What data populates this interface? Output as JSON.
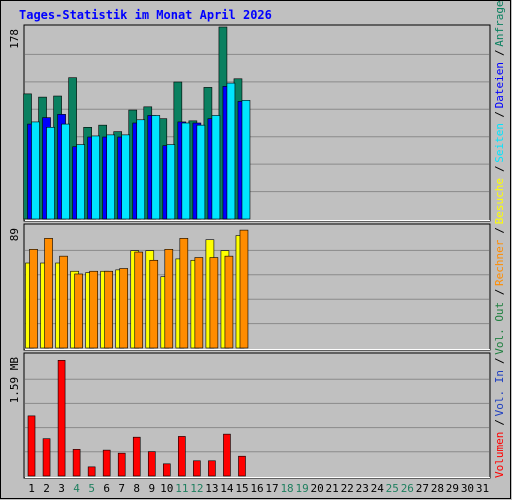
{
  "title": "Tages-Statistik im Monat April 2026",
  "colors": {
    "background": "#c0c0c0",
    "panel": "#c0c0c0",
    "grid": "#8a8a8a",
    "title": "#0000ff",
    "anfragen": "#0a8060",
    "dateien": "#0000ff",
    "seiten": "#00e5ff",
    "besuche": "#ffff00",
    "rechner": "#ff8c00",
    "vol_out": "#208040",
    "vol_in": "#2040c0",
    "volumen": "#ff0000",
    "weekend_label": "#208060",
    "day_label": "#000000"
  },
  "chart_data": {
    "type": "bar",
    "title": "Tages-Statistik im Monat April 2026",
    "days": [
      "1",
      "2",
      "3",
      "4",
      "5",
      "6",
      "7",
      "8",
      "9",
      "10",
      "11",
      "12",
      "13",
      "14",
      "15",
      "16",
      "17",
      "18",
      "19",
      "20",
      "21",
      "22",
      "23",
      "24",
      "25",
      "26",
      "27",
      "28",
      "29",
      "30",
      "31"
    ],
    "weekend_days": [
      "4",
      "5",
      "11",
      "12",
      "18",
      "19",
      "25",
      "26"
    ],
    "panels": [
      {
        "name": "requests",
        "ymax_label": "178",
        "ymax": 178,
        "series": [
          {
            "name": "Anfragen",
            "color_key": "anfragen",
            "values": [
              116,
              113,
              114,
              131,
              85,
              87,
              81,
              101,
              104,
              93,
              127,
              91,
              122,
              178,
              130,
              0,
              0,
              0,
              0,
              0,
              0,
              0,
              0,
              0,
              0,
              0,
              0,
              0,
              0,
              0,
              0
            ]
          },
          {
            "name": "Dateien",
            "color_key": "dateien",
            "values": [
              88,
              94,
              97,
              67,
              76,
              76,
              76,
              89,
              96,
              68,
              90,
              89,
              93,
              123,
              109,
              0,
              0,
              0,
              0,
              0,
              0,
              0,
              0,
              0,
              0,
              0,
              0,
              0,
              0,
              0,
              0
            ]
          },
          {
            "name": "Seiten",
            "color_key": "seiten",
            "values": [
              90,
              85,
              88,
              69,
              77,
              78,
              78,
              92,
              96,
              69,
              89,
              87,
              96,
              126,
              110,
              0,
              0,
              0,
              0,
              0,
              0,
              0,
              0,
              0,
              0,
              0,
              0,
              0,
              0,
              0,
              0
            ]
          }
        ],
        "legend": [
          "Anfragen",
          "Dateien",
          "Seiten"
        ]
      },
      {
        "name": "visits",
        "ymax_label": "89",
        "ymax": 89,
        "series": [
          {
            "name": "Besuche",
            "color_key": "besuche",
            "values": [
              62,
              62,
              62,
              56,
              55,
              56,
              57,
              71,
              71,
              52,
              65,
              64,
              79,
              71,
              82,
              0,
              0,
              0,
              0,
              0,
              0,
              0,
              0,
              0,
              0,
              0,
              0,
              0,
              0,
              0,
              0
            ]
          },
          {
            "name": "Rechner",
            "color_key": "rechner",
            "values": [
              72,
              80,
              67,
              54,
              56,
              56,
              58,
              70,
              64,
              72,
              80,
              66,
              66,
              67,
              86,
              0,
              0,
              0,
              0,
              0,
              0,
              0,
              0,
              0,
              0,
              0,
              0,
              0,
              0,
              0,
              0
            ]
          }
        ],
        "legend": [
          "Besuche",
          "Rechner"
        ]
      },
      {
        "name": "volume",
        "ymax_label": "1.59 MB",
        "ymax": 1.59,
        "series": [
          {
            "name": "Volumen",
            "color_key": "volumen",
            "values": [
              0.79,
              0.49,
              1.52,
              0.35,
              0.12,
              0.34,
              0.3,
              0.51,
              0.32,
              0.16,
              0.52,
              0.2,
              0.2,
              0.55,
              0.26,
              0,
              0,
              0,
              0,
              0,
              0,
              0,
              0,
              0,
              0,
              0,
              0,
              0,
              0,
              0,
              0
            ]
          }
        ],
        "legend": [
          "Volumen",
          "Vol. In",
          "Vol. Out"
        ]
      }
    ],
    "legend_right": [
      {
        "label": "Volumen",
        "color_key": "volumen"
      },
      {
        "label": "Vol. In",
        "color_key": "vol_in"
      },
      {
        "label": "Vol. Out",
        "color_key": "vol_out"
      },
      {
        "label": "Rechner",
        "color_key": "rechner"
      },
      {
        "label": "Besuche",
        "color_key": "besuche"
      },
      {
        "label": "Seiten",
        "color_key": "seiten"
      },
      {
        "label": "Dateien",
        "color_key": "dateien"
      },
      {
        "label": "Anfragen",
        "color_key": "anfragen"
      }
    ],
    "legend_separator": "/",
    "grid": true
  }
}
